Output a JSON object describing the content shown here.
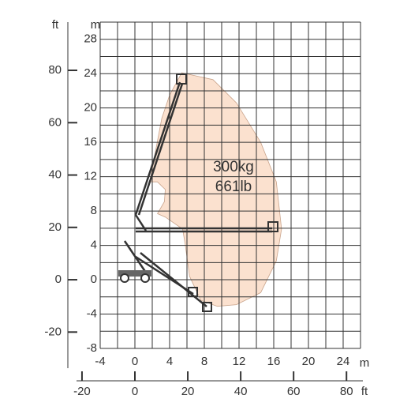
{
  "chart_data": {
    "type": "area",
    "y_unit_left": "ft",
    "y_unit": "m",
    "x_unit": "m",
    "x_unit_bottom": "ft",
    "labels": [
      "300kg",
      "661lb"
    ],
    "color": "#fbe1cf",
    "x": [
      5.4,
      9,
      11.7,
      14.5,
      16.3,
      16.9,
      16.3,
      14.5,
      11.7,
      9.5,
      7.6,
      6.3,
      5.8,
      5.5,
      3.5,
      2.6,
      3.4,
      3.5,
      2.6,
      1.7,
      3.1,
      4
    ],
    "y": [
      24.1,
      23.3,
      20.6,
      16,
      11.4,
      5.9,
      2.2,
      -1.5,
      -2.9,
      -3.1,
      -2.4,
      0.4,
      4.1,
      5.9,
      7.3,
      7.7,
      9.1,
      10.5,
      11.4,
      11.4,
      18.8,
      21.5
    ],
    "xlim": [
      -4,
      26
    ],
    "ylim": [
      -8,
      30
    ],
    "xticks": [
      -4,
      0,
      4,
      8,
      12,
      16,
      20,
      24
    ],
    "yticks": [
      -8,
      -4,
      0,
      4,
      8,
      12,
      16,
      20,
      24,
      28
    ],
    "ft_yticks": [
      -20,
      0,
      20,
      40,
      60,
      80
    ],
    "ft_xticks": [
      -20,
      0,
      20,
      40,
      60,
      80
    ],
    "grid": true,
    "grid_step": 2
  }
}
